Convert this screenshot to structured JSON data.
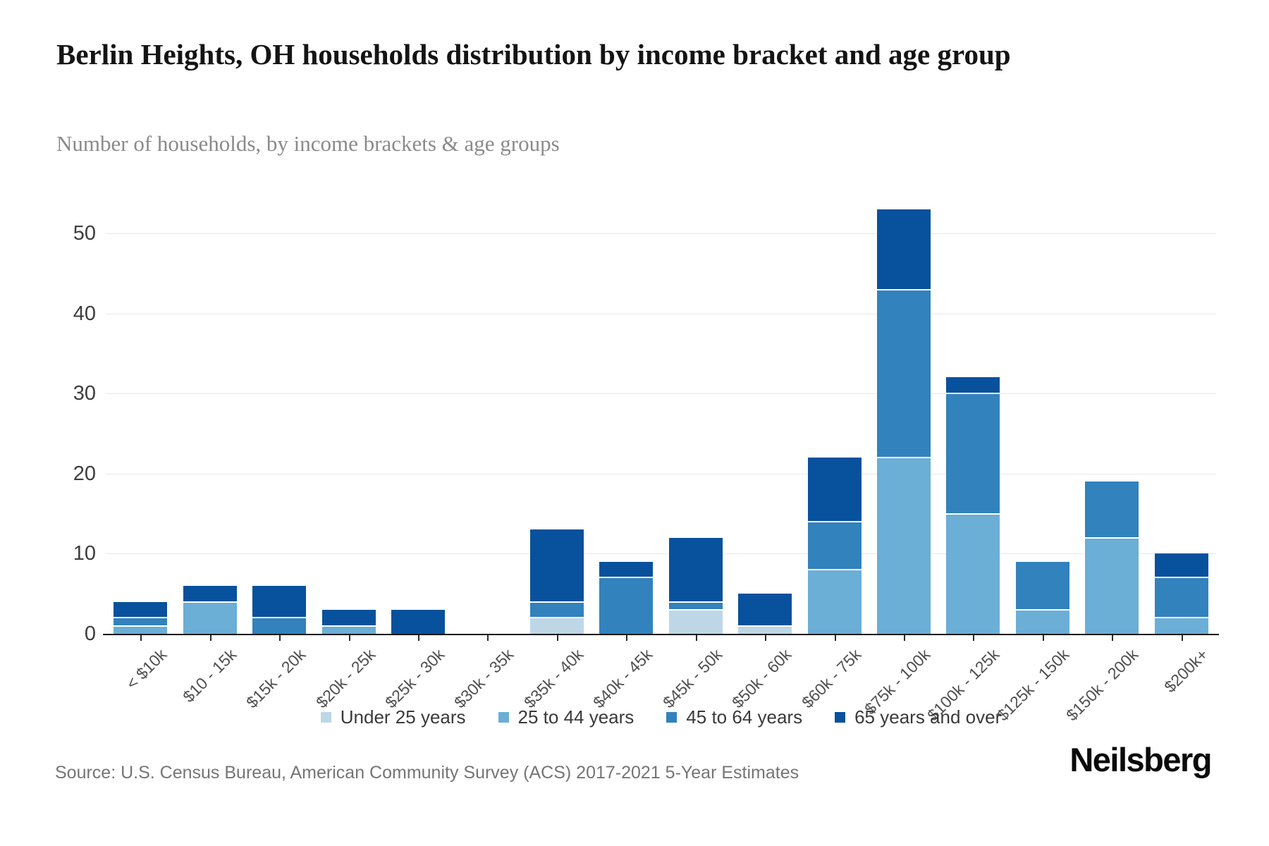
{
  "page": {
    "title": "Berlin Heights, OH households distribution by income bracket and age group",
    "subtitle": "Number of households, by income brackets & age groups",
    "source": "Source: U.S. Census Bureau, American Community Survey (ACS) 2017-2021 5-Year Estimates",
    "logo": "Neilsberg"
  },
  "chart_data": {
    "type": "bar",
    "stacked": true,
    "title": "Berlin Heights, OH households distribution by income bracket and age group",
    "subtitle": "Number of households, by income brackets & age groups",
    "xlabel": "",
    "ylabel": "",
    "ylim": [
      0,
      55
    ],
    "yticks": [
      0,
      10,
      20,
      30,
      40,
      50
    ],
    "grid": true,
    "legend_position": "bottom",
    "categories": [
      "< $10k",
      "$10 - 15k",
      "$15k - 20k",
      "$20k - 25k",
      "$25k - 30k",
      "$30k - 35k",
      "$35k - 40k",
      "$40k - 45k",
      "$45k - 50k",
      "$50k - 60k",
      "$60k - 75k",
      "$75k - 100k",
      "$100k - 125k",
      "$125k - 150k",
      "$150k - 200k",
      "$200k+"
    ],
    "series": [
      {
        "name": "Under 25 years",
        "color": "#bdd7e7",
        "values": [
          0,
          0,
          0,
          0,
          0,
          0,
          2,
          0,
          3,
          1,
          0,
          0,
          0,
          0,
          0,
          0
        ]
      },
      {
        "name": "25 to 44 years",
        "color": "#6baed6",
        "values": [
          1,
          4,
          0,
          1,
          0,
          0,
          0,
          0,
          0,
          0,
          8,
          22,
          15,
          3,
          12,
          2
        ]
      },
      {
        "name": "45 to 64 years",
        "color": "#3182bd",
        "values": [
          1,
          0,
          2,
          0,
          0,
          0,
          2,
          7,
          1,
          0,
          6,
          21,
          15,
          6,
          7,
          5
        ]
      },
      {
        "name": "65 years and over",
        "color": "#08519c",
        "values": [
          2,
          2,
          4,
          2,
          3,
          0,
          9,
          2,
          8,
          4,
          8,
          10,
          2,
          0,
          0,
          3
        ]
      }
    ],
    "totals": [
      4,
      6,
      6,
      3,
      3,
      0,
      13,
      9,
      12,
      5,
      22,
      53,
      32,
      9,
      19,
      10
    ]
  },
  "style_colors": {
    "axis_line": "#161616",
    "gridline": "#e8e8e8",
    "y_tick_label": "#3d3d3d",
    "x_tick_label": "#4f4f4f",
    "title_text": "#141414",
    "subtitle_text": "#8a8a8a",
    "source_text": "#757575",
    "logo_text": "#0a0a0a"
  }
}
